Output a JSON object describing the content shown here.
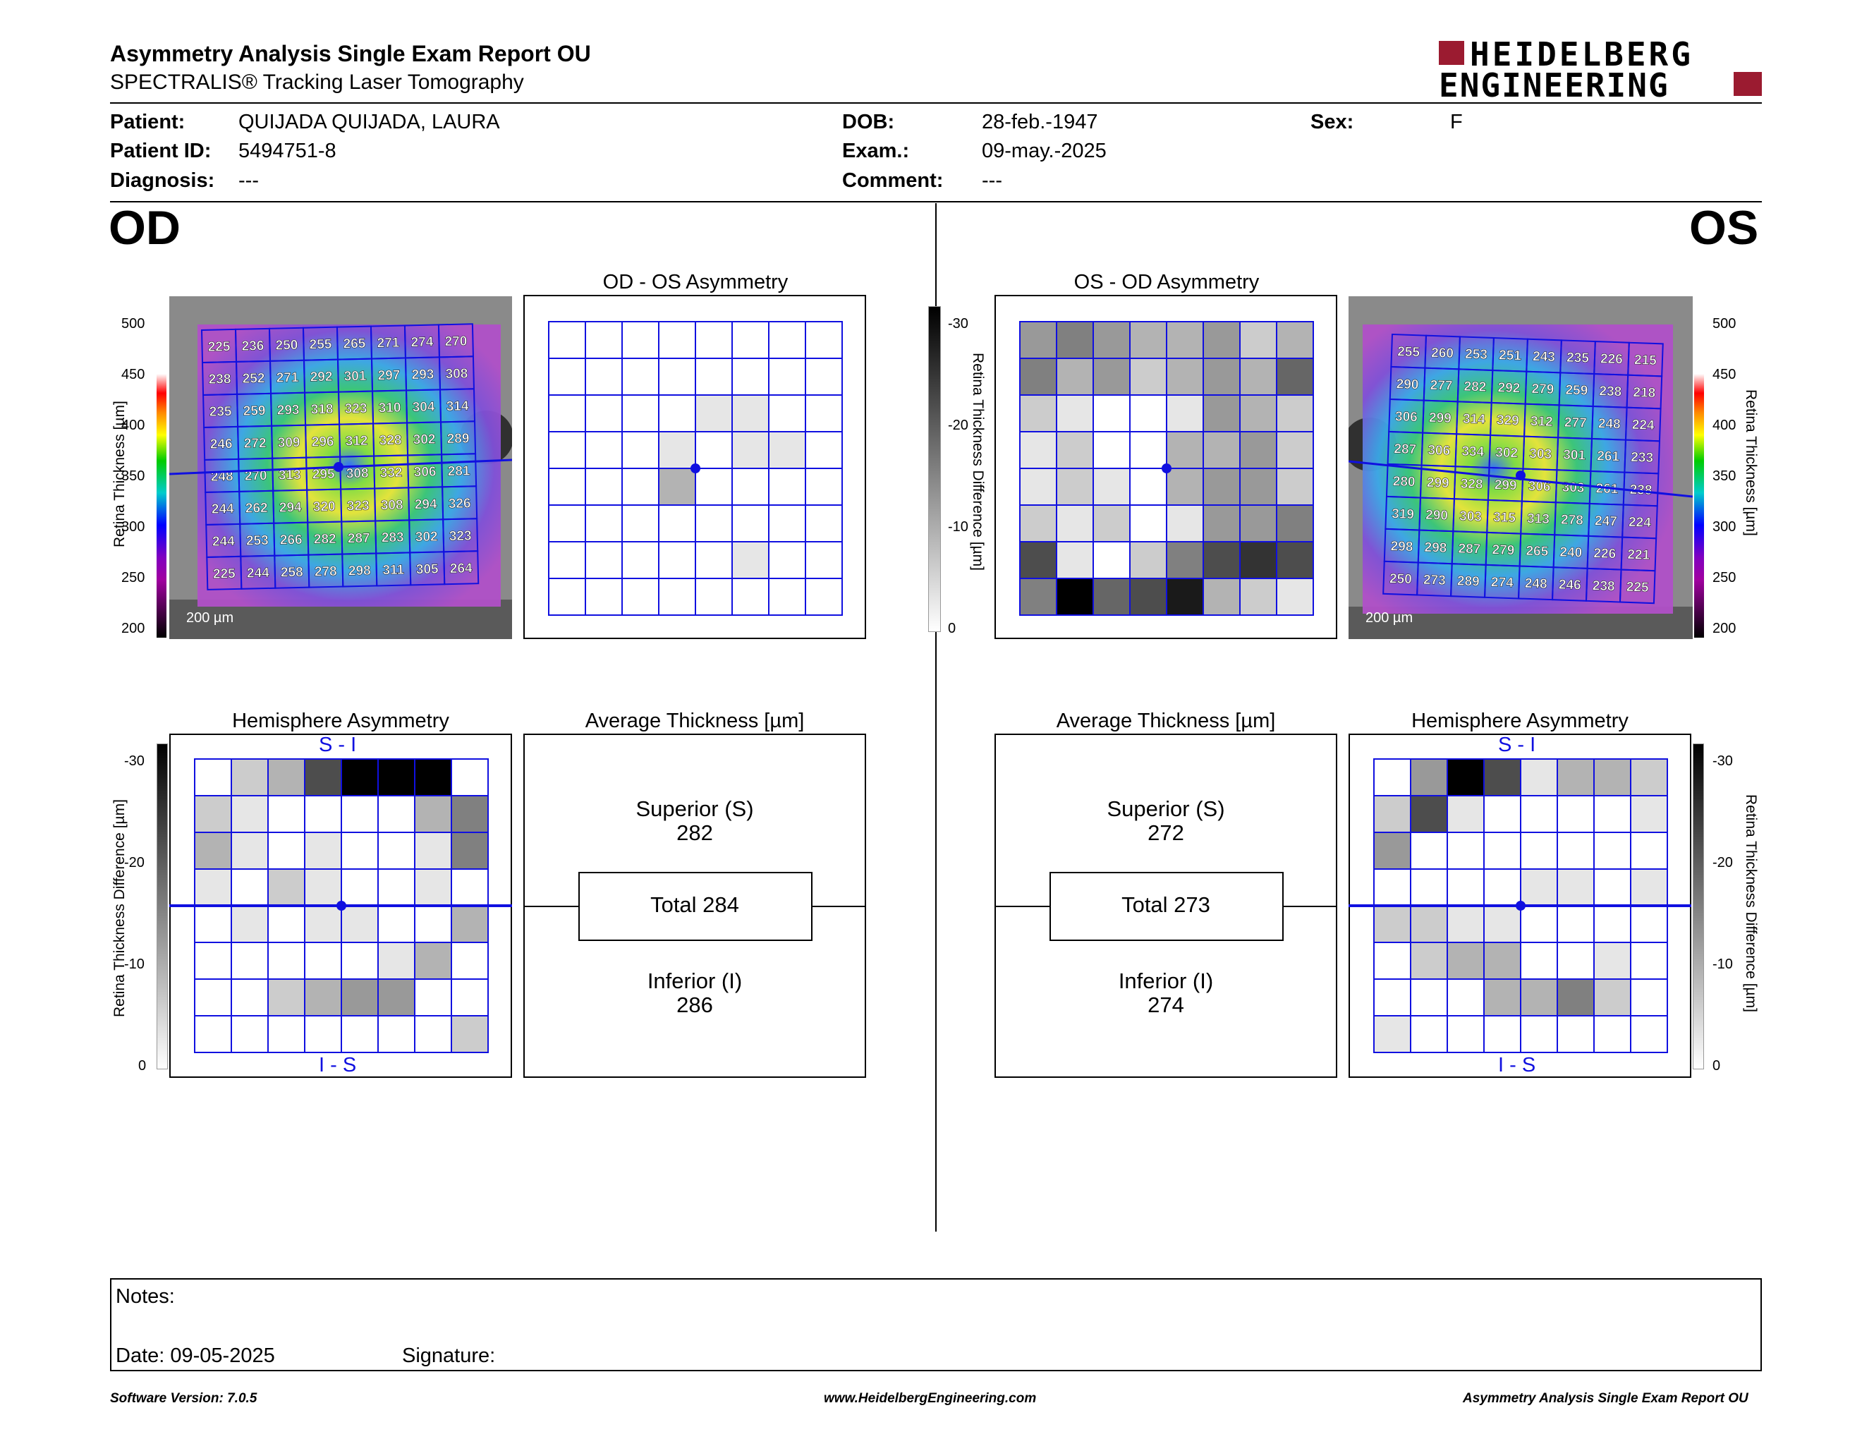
{
  "header": {
    "title": "Asymmetry Analysis Single Exam Report OU",
    "subtitle": "SPECTRALIS® Tracking Laser Tomography",
    "logo_line1": "HEIDELBERG",
    "logo_line2": "ENGINEERING",
    "brand_color": "#9b1b30"
  },
  "patient": {
    "patient_label": "Patient:",
    "patient": "QUIJADA QUIJADA, LAURA",
    "id_label": "Patient ID:",
    "id": "5494751-8",
    "diag_label": "Diagnosis:",
    "diagnosis": "---",
    "dob_label": "DOB:",
    "dob": "28-feb.-1947",
    "exam_label": "Exam.:",
    "exam": "09-may.-2025",
    "comment_label": "Comment:",
    "comment": "---",
    "sex_label": "Sex:",
    "sex": "F"
  },
  "od": {
    "eye": "OD",
    "asym_title": "OD - OS Asymmetry",
    "hemi_title": "Hemisphere Asymmetry",
    "avg_title": "Average Thickness [µm]",
    "superior_label": "Superior (S)",
    "superior": "282",
    "total": "Total 284",
    "inferior_label": "Inferior (I)",
    "inferior": "286",
    "scale": "200 µm",
    "hemi_top": "S - I",
    "hemi_bottom": "I - S",
    "thickness_grid": [
      [
        225,
        236,
        250,
        255,
        265,
        271,
        274,
        270
      ],
      [
        238,
        252,
        271,
        292,
        301,
        297,
        293,
        308
      ],
      [
        235,
        259,
        293,
        318,
        323,
        310,
        304,
        314
      ],
      [
        246,
        272,
        309,
        296,
        312,
        328,
        302,
        289
      ],
      [
        248,
        270,
        313,
        295,
        308,
        332,
        306,
        281
      ],
      [
        244,
        262,
        294,
        320,
        323,
        308,
        294,
        326
      ],
      [
        244,
        253,
        266,
        282,
        287,
        283,
        302,
        323
      ],
      [
        225,
        244,
        258,
        278,
        298,
        311,
        305,
        264
      ]
    ],
    "asym_shades": [
      [
        0,
        0,
        0,
        0,
        0,
        0,
        0,
        0
      ],
      [
        0,
        0,
        0,
        0,
        0,
        0,
        0,
        0
      ],
      [
        0,
        0,
        0,
        0,
        1,
        1,
        0,
        0
      ],
      [
        0,
        0,
        0,
        1,
        0,
        1,
        1,
        0
      ],
      [
        0,
        0,
        0,
        3,
        0,
        0,
        0,
        0
      ],
      [
        0,
        0,
        0,
        0,
        0,
        0,
        0,
        0
      ],
      [
        0,
        0,
        0,
        0,
        0,
        1,
        0,
        0
      ],
      [
        0,
        0,
        0,
        0,
        0,
        0,
        0,
        0
      ]
    ],
    "hemi_shades": [
      [
        0,
        2,
        3,
        7,
        10,
        10,
        10,
        0
      ],
      [
        2,
        1,
        0,
        0,
        0,
        0,
        3,
        5
      ],
      [
        3,
        1,
        0,
        1,
        0,
        0,
        1,
        5
      ],
      [
        1,
        0,
        2,
        1,
        0,
        0,
        1,
        0
      ],
      [
        0,
        1,
        0,
        1,
        1,
        0,
        0,
        3
      ],
      [
        0,
        0,
        0,
        0,
        0,
        1,
        3,
        0
      ],
      [
        0,
        0,
        2,
        3,
        4,
        4,
        0,
        0
      ],
      [
        0,
        0,
        0,
        0,
        0,
        0,
        0,
        2
      ]
    ]
  },
  "os": {
    "eye": "OS",
    "asym_title": "OS - OD Asymmetry",
    "hemi_title": "Hemisphere Asymmetry",
    "avg_title": "Average Thickness [µm]",
    "superior_label": "Superior (S)",
    "superior": "272",
    "total": "Total 273",
    "inferior_label": "Inferior (I)",
    "inferior": "274",
    "scale": "200 µm",
    "hemi_top": "S - I",
    "hemi_bottom": "I - S",
    "thickness_grid": [
      [
        255,
        260,
        253,
        251,
        243,
        235,
        226,
        215
      ],
      [
        290,
        277,
        282,
        292,
        279,
        259,
        238,
        218
      ],
      [
        306,
        299,
        314,
        329,
        312,
        277,
        248,
        224
      ],
      [
        287,
        306,
        334,
        302,
        303,
        301,
        261,
        233
      ],
      [
        280,
        299,
        328,
        299,
        306,
        303,
        261,
        238
      ],
      [
        319,
        290,
        303,
        315,
        313,
        278,
        247,
        224
      ],
      [
        298,
        298,
        287,
        279,
        265,
        240,
        226,
        221
      ],
      [
        250,
        273,
        289,
        274,
        248,
        246,
        238,
        225
      ]
    ],
    "asym_shades": [
      [
        4,
        5,
        4,
        3,
        3,
        4,
        2,
        3
      ],
      [
        5,
        3,
        4,
        2,
        3,
        4,
        3,
        6
      ],
      [
        2,
        1,
        0,
        0,
        1,
        4,
        3,
        2
      ],
      [
        1,
        2,
        0,
        0,
        3,
        3,
        4,
        2
      ],
      [
        1,
        2,
        1,
        0,
        3,
        4,
        4,
        2
      ],
      [
        2,
        1,
        2,
        0,
        1,
        4,
        4,
        5
      ],
      [
        7,
        1,
        0,
        2,
        5,
        7,
        8,
        7
      ],
      [
        5,
        10,
        6,
        7,
        9,
        3,
        2,
        1
      ]
    ],
    "hemi_shades": [
      [
        0,
        4,
        10,
        7,
        1,
        3,
        3,
        2
      ],
      [
        2,
        7,
        1,
        0,
        0,
        0,
        0,
        1
      ],
      [
        4,
        0,
        0,
        0,
        0,
        0,
        0,
        0
      ],
      [
        0,
        0,
        0,
        0,
        1,
        1,
        0,
        1
      ],
      [
        2,
        2,
        1,
        1,
        0,
        0,
        0,
        0
      ],
      [
        0,
        2,
        3,
        3,
        0,
        0,
        1,
        0
      ],
      [
        0,
        0,
        0,
        3,
        3,
        5,
        2,
        0
      ],
      [
        1,
        0,
        0,
        0,
        0,
        0,
        0,
        0
      ]
    ]
  },
  "colorbar_thickness": {
    "label": "Retina Thickness [µm]",
    "ticks": [
      "500",
      "450",
      "400",
      "350",
      "300",
      "250",
      "200"
    ]
  },
  "colorbar_diff": {
    "label": "Retina Thickness Difference [µm]",
    "ticks": [
      "-30",
      "-20",
      "-10",
      "0"
    ]
  },
  "notes": {
    "notes_label": "Notes:",
    "date_label": "Date: 09-05-2025",
    "signature_label": "Signature:"
  },
  "footer": {
    "software": "Software Version: 7.0.5",
    "website": "www.HeidelbergEngineering.com",
    "report": "Asymmetry Analysis Single Exam Report OU"
  }
}
